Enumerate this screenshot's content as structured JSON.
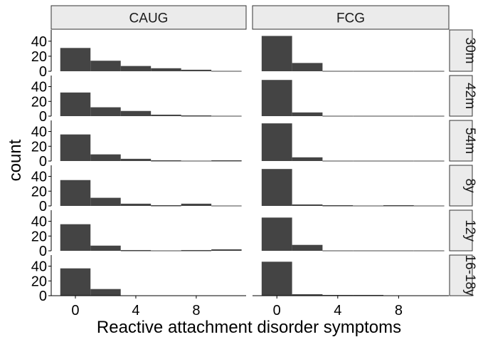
{
  "chart_data": {
    "type": "bar",
    "subtype": "faceted-histogram",
    "xlabel": "Reactive attachment disorder symptoms",
    "ylabel": "count",
    "columns": [
      "CAUG",
      "FCG"
    ],
    "rows": [
      "30m",
      "42m",
      "54m",
      "8y",
      "12y",
      "16-18y"
    ],
    "bin_width": 2,
    "bin_starts": [
      -1,
      1,
      3,
      5,
      7,
      9
    ],
    "xlim": [
      -1.6,
      11.3
    ],
    "ylim": [
      0,
      55
    ],
    "x_ticks": [
      0,
      4,
      8
    ],
    "y_ticks": [
      0,
      20,
      40
    ],
    "panels": {
      "CAUG": {
        "30m": [
          31,
          14,
          7,
          4,
          2,
          0
        ],
        "42m": [
          32,
          12,
          7,
          2,
          1,
          0
        ],
        "54m": [
          36,
          9,
          3,
          1,
          0,
          1
        ],
        "8y": [
          35,
          11,
          3,
          1,
          3,
          0
        ],
        "12y": [
          36,
          7,
          1,
          0,
          1,
          2
        ],
        "16-18y": [
          37,
          9,
          0,
          0,
          0,
          0
        ]
      },
      "FCG": {
        "30m": [
          47,
          11,
          0,
          0,
          0,
          0
        ],
        "42m": [
          49,
          5,
          0,
          0,
          0,
          0
        ],
        "54m": [
          51,
          5,
          0,
          0,
          0,
          0
        ],
        "8y": [
          50,
          2,
          1,
          0,
          1,
          0
        ],
        "12y": [
          45,
          8,
          0,
          0,
          0,
          0
        ],
        "16-18y": [
          46,
          2,
          1,
          1,
          0,
          0
        ]
      }
    }
  }
}
